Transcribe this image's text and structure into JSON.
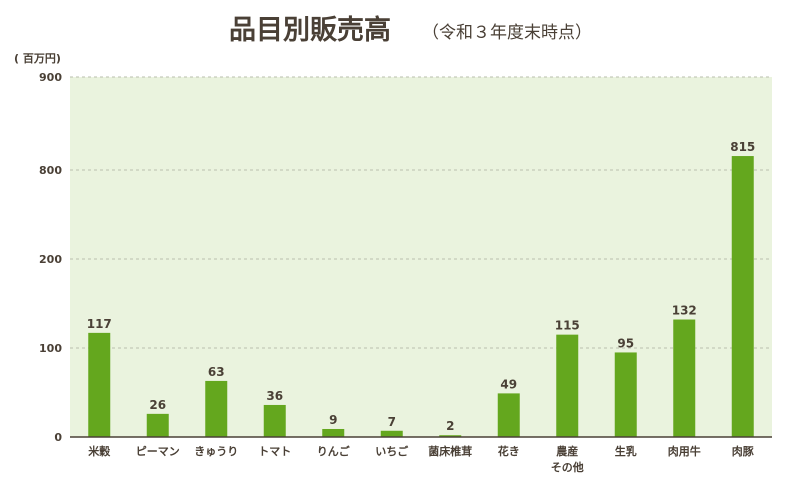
{
  "chart_data": {
    "type": "bar",
    "title": "品目別販売高",
    "subtitle": "（令和３年度末時点）",
    "unit_label": "( 百万円)",
    "categories": [
      [
        "米穀"
      ],
      [
        "ピーマン"
      ],
      [
        "きゅうり"
      ],
      [
        "トマト"
      ],
      [
        "りんご"
      ],
      [
        "いちご"
      ],
      [
        "菌床椎茸"
      ],
      [
        "花き"
      ],
      [
        "農産",
        "その他"
      ],
      [
        "生乳"
      ],
      [
        "肉用牛"
      ],
      [
        "肉豚"
      ]
    ],
    "values": [
      117,
      26,
      63,
      36,
      9,
      7,
      2,
      49,
      115,
      95,
      132,
      815
    ],
    "y_ticks": [
      "0",
      "100",
      "200",
      "800",
      "900"
    ],
    "y_axis": "broken scale: 0–200 linear, then jump to 800–900",
    "grid": true,
    "colors": {
      "bar": "#64a71e",
      "plot_bg": "#eaf3de",
      "grid": "#b9bfae",
      "axis": "#4a4036"
    }
  }
}
